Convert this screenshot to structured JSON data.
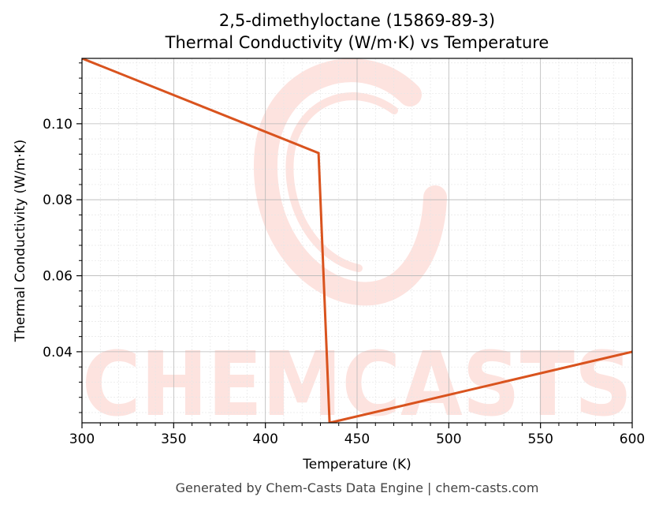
{
  "chart_data": {
    "type": "line",
    "title": "2,5-dimethyloctane (15869-89-3)",
    "subtitle": "Thermal Conductivity (W/m·K) vs Temperature",
    "xlabel": "Temperature (K)",
    "ylabel": "Thermal Conductivity (W/m·K)",
    "xlim": [
      300,
      600
    ],
    "ylim": [
      0.0213,
      0.1172
    ],
    "x_ticks": [
      300,
      350,
      400,
      450,
      500,
      550,
      600
    ],
    "x_tick_labels": [
      "300",
      "350",
      "400",
      "450",
      "500",
      "550",
      "600"
    ],
    "y_ticks": [
      0.04,
      0.06,
      0.08,
      0.1
    ],
    "y_tick_labels": [
      "0.04",
      "0.06",
      "0.08",
      "0.10"
    ],
    "grid": true,
    "series": [
      {
        "color": "#d9531e",
        "x": [
          300,
          429,
          435,
          600
        ],
        "y": [
          0.1172,
          0.0923,
          0.0213,
          0.04
        ]
      }
    ]
  },
  "watermark": {
    "text": "CHEMCASTS",
    "color": "#fde0dc"
  },
  "footer": "Generated by Chem-Casts Data Engine | chem-casts.com"
}
